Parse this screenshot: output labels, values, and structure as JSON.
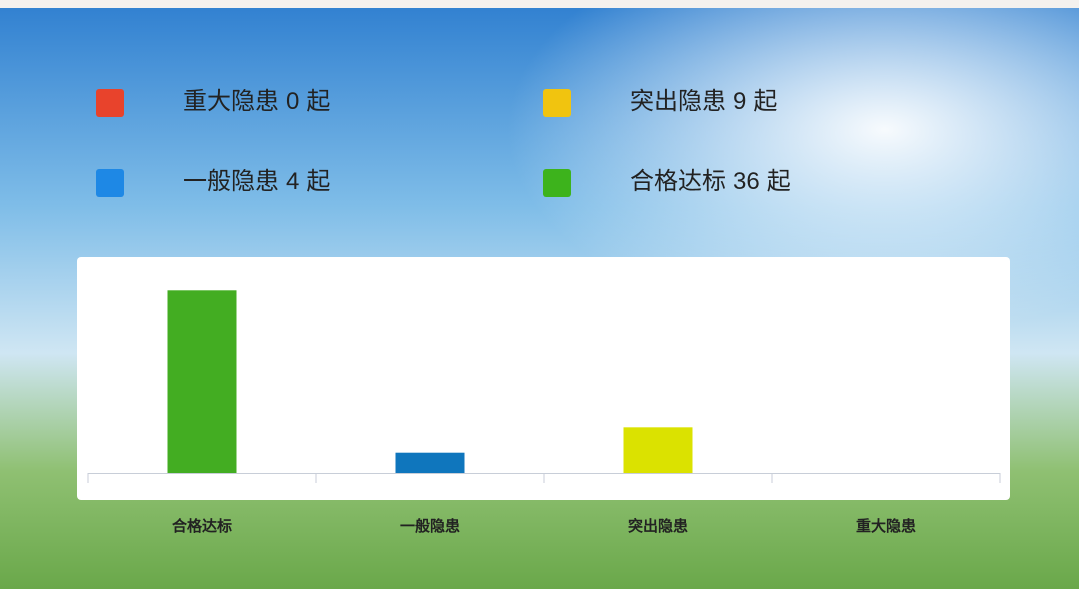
{
  "chart_data": {
    "type": "bar",
    "categories": [
      "合格达标",
      "一般隐患",
      "突出隐患",
      "重大隐患"
    ],
    "values": [
      36,
      4,
      9,
      0
    ],
    "colors": [
      "#43ad22",
      "#0f76bd",
      "#dbe200",
      "#e8432c"
    ],
    "ylim": [
      0,
      40
    ],
    "legend": [
      {
        "label": "重大隐患",
        "value": 0,
        "unit": "起",
        "color": "#e8432c"
      },
      {
        "label": "突出隐患",
        "value": 9,
        "unit": "起",
        "color": "#f1c40f"
      },
      {
        "label": "一般隐患",
        "value": 4,
        "unit": "起",
        "color": "#1e88e5"
      },
      {
        "label": "合格达标",
        "value": 36,
        "unit": "起",
        "color": "#3db31c"
      }
    ]
  }
}
